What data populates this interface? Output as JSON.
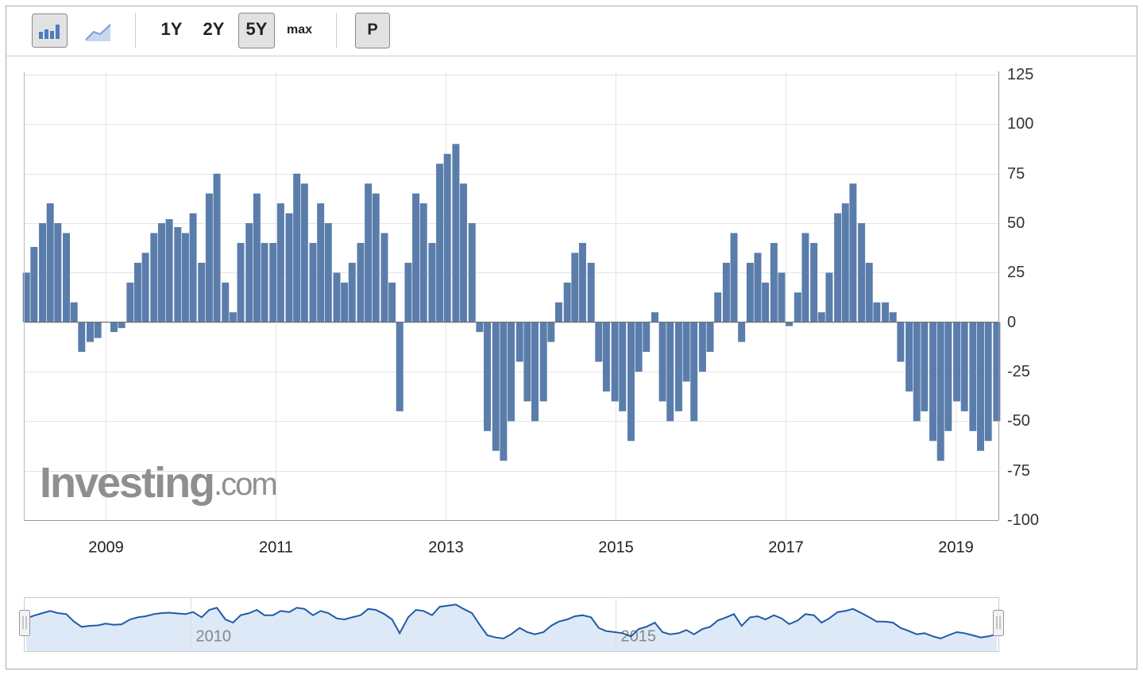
{
  "toolbar": {
    "ranges": [
      "1Y",
      "2Y",
      "5Y",
      "max"
    ],
    "active_range": 2,
    "p_button": "P"
  },
  "watermark": [
    "Investing",
    ".com"
  ],
  "chart_data": {
    "type": "bar",
    "color": "#5a7dab",
    "x": [
      2008.07,
      2008.16,
      2008.26,
      2008.35,
      2008.44,
      2008.54,
      2008.63,
      2008.72,
      2008.82,
      2008.91,
      2009.0,
      2009.1,
      2009.19,
      2009.29,
      2009.38,
      2009.47,
      2009.57,
      2009.66,
      2009.75,
      2009.85,
      2009.94,
      2010.03,
      2010.13,
      2010.22,
      2010.31,
      2010.41,
      2010.5,
      2010.59,
      2010.69,
      2010.78,
      2010.87,
      2010.97,
      2011.06,
      2011.16,
      2011.25,
      2011.34,
      2011.44,
      2011.53,
      2011.62,
      2011.72,
      2011.81,
      2011.9,
      2012.0,
      2012.09,
      2012.18,
      2012.28,
      2012.37,
      2012.46,
      2012.56,
      2012.65,
      2012.74,
      2012.84,
      2012.93,
      2013.02,
      2013.12,
      2013.21,
      2013.31,
      2013.4,
      2013.49,
      2013.59,
      2013.68,
      2013.77,
      2013.87,
      2013.96,
      2014.05,
      2014.15,
      2014.24,
      2014.33,
      2014.43,
      2014.52,
      2014.61,
      2014.71,
      2014.8,
      2014.89,
      2014.99,
      2015.08,
      2015.18,
      2015.27,
      2015.36,
      2015.46,
      2015.55,
      2015.64,
      2015.74,
      2015.83,
      2015.92,
      2016.02,
      2016.11,
      2016.2,
      2016.3,
      2016.39,
      2016.48,
      2016.58,
      2016.67,
      2016.76,
      2016.86,
      2016.95,
      2017.04,
      2017.14,
      2017.23,
      2017.33,
      2017.42,
      2017.51,
      2017.61,
      2017.7,
      2017.79,
      2017.89,
      2017.98,
      2018.07,
      2018.17,
      2018.26,
      2018.35,
      2018.45,
      2018.54,
      2018.63,
      2018.73,
      2018.82,
      2018.91,
      2019.01,
      2019.1,
      2019.2,
      2019.29,
      2019.38,
      2019.48
    ],
    "values": [
      25,
      38,
      50,
      60,
      50,
      45,
      10,
      -15,
      -10,
      -8,
      0,
      -5,
      -3,
      20,
      30,
      35,
      45,
      50,
      52,
      48,
      45,
      55,
      30,
      65,
      75,
      20,
      5,
      40,
      50,
      65,
      40,
      40,
      60,
      55,
      75,
      70,
      40,
      60,
      50,
      25,
      20,
      30,
      40,
      70,
      65,
      45,
      20,
      -45,
      30,
      65,
      60,
      40,
      80,
      85,
      90,
      70,
      50,
      -5,
      -55,
      -65,
      -70,
      -50,
      -20,
      -40,
      -50,
      -40,
      -10,
      10,
      20,
      35,
      40,
      30,
      -20,
      -35,
      -40,
      -45,
      -60,
      -25,
      -15,
      5,
      -40,
      -50,
      -45,
      -30,
      -50,
      -25,
      -15,
      15,
      30,
      45,
      -10,
      30,
      35,
      20,
      40,
      25,
      -2,
      15,
      45,
      40,
      5,
      25,
      55,
      60,
      70,
      50,
      30,
      10,
      10,
      5,
      -20,
      -35,
      -50,
      -45,
      -60,
      -70,
      -55,
      -40,
      -45,
      -55,
      -65,
      -60,
      -50
    ],
    "xlim": [
      2008.04,
      2019.5
    ],
    "xticks": [
      2009,
      2011,
      2013,
      2015,
      2017,
      2019
    ],
    "ylim": [
      -100,
      125
    ],
    "yticks": [
      125,
      100,
      75,
      50,
      25,
      0,
      -25,
      -50,
      -75,
      -100
    ],
    "grid": true,
    "navigator": {
      "xticks": [
        2010,
        2015
      ],
      "line_color": "#1f5ba8",
      "fill": "#dde9f7"
    }
  }
}
